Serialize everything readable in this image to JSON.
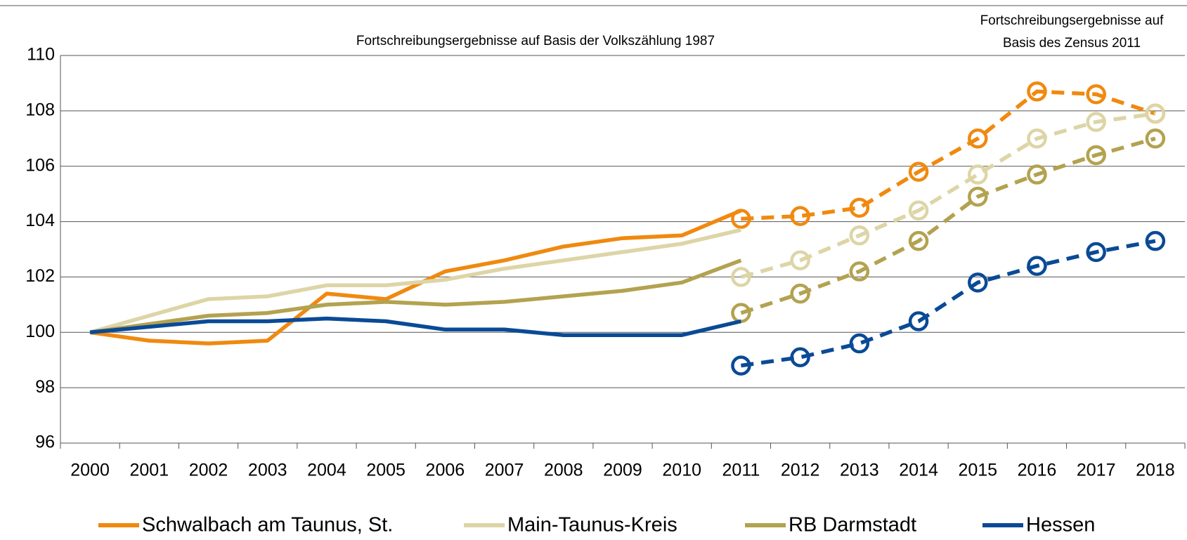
{
  "chart_data": {
    "type": "line",
    "annotations": [
      "Fortschreibungsergebnisse auf Basis der Volkszählung 1987",
      "Fortschreibungsergebnisse auf",
      "Basis des Zensus 2011"
    ],
    "categories": [
      "2000",
      "2001",
      "2002",
      "2003",
      "2004",
      "2005",
      "2006",
      "2007",
      "2008",
      "2009",
      "2010",
      "2011",
      "2012",
      "2013",
      "2014",
      "2015",
      "2016",
      "2017",
      "2018"
    ],
    "ylim": [
      96,
      110
    ],
    "yticks": [
      96,
      98,
      100,
      102,
      104,
      106,
      108,
      110
    ],
    "grid": true,
    "series": [
      {
        "name": "Schwalbach am Taunus, St.",
        "color": "#f0890f",
        "values": [
          100,
          99.7,
          99.6,
          99.7,
          101.4,
          101.2,
          102.2,
          102.6,
          103.1,
          103.4,
          103.5,
          104.4,
          null,
          null,
          null,
          null,
          null,
          null,
          null
        ],
        "values_zensus_2011": [
          null,
          null,
          null,
          null,
          null,
          null,
          null,
          null,
          null,
          null,
          null,
          104.1,
          104.2,
          104.5,
          105.8,
          107.0,
          108.7,
          108.6,
          107.9
        ]
      },
      {
        "name": "Main-Taunus-Kreis",
        "color": "#ddd5a6",
        "values": [
          100,
          100.6,
          101.2,
          101.3,
          101.7,
          101.7,
          101.9,
          102.3,
          102.6,
          102.9,
          103.2,
          103.7,
          null,
          null,
          null,
          null,
          null,
          null,
          null
        ],
        "values_zensus_2011": [
          null,
          null,
          null,
          null,
          null,
          null,
          null,
          null,
          null,
          null,
          null,
          102.0,
          102.6,
          103.5,
          104.4,
          105.7,
          107.0,
          107.6,
          107.9
        ]
      },
      {
        "name": "RB Darmstadt",
        "color": "#b3a24f",
        "values": [
          100,
          100.3,
          100.6,
          100.7,
          101.0,
          101.1,
          101.0,
          101.1,
          101.3,
          101.5,
          101.8,
          102.6,
          null,
          null,
          null,
          null,
          null,
          null,
          null
        ],
        "values_zensus_2011": [
          null,
          null,
          null,
          null,
          null,
          null,
          null,
          null,
          null,
          null,
          null,
          100.7,
          101.4,
          102.2,
          103.3,
          104.9,
          105.7,
          106.4,
          107.0
        ]
      },
      {
        "name": "Hessen",
        "color": "#0a4a96",
        "values": [
          100,
          100.2,
          100.4,
          100.4,
          100.5,
          100.4,
          100.1,
          100.1,
          99.9,
          99.9,
          99.9,
          100.4,
          null,
          null,
          null,
          null,
          null,
          null,
          null
        ],
        "values_zensus_2011": [
          null,
          null,
          null,
          null,
          null,
          null,
          null,
          null,
          null,
          null,
          null,
          98.8,
          99.1,
          99.6,
          100.4,
          101.8,
          102.4,
          102.9,
          103.3
        ]
      }
    ]
  }
}
